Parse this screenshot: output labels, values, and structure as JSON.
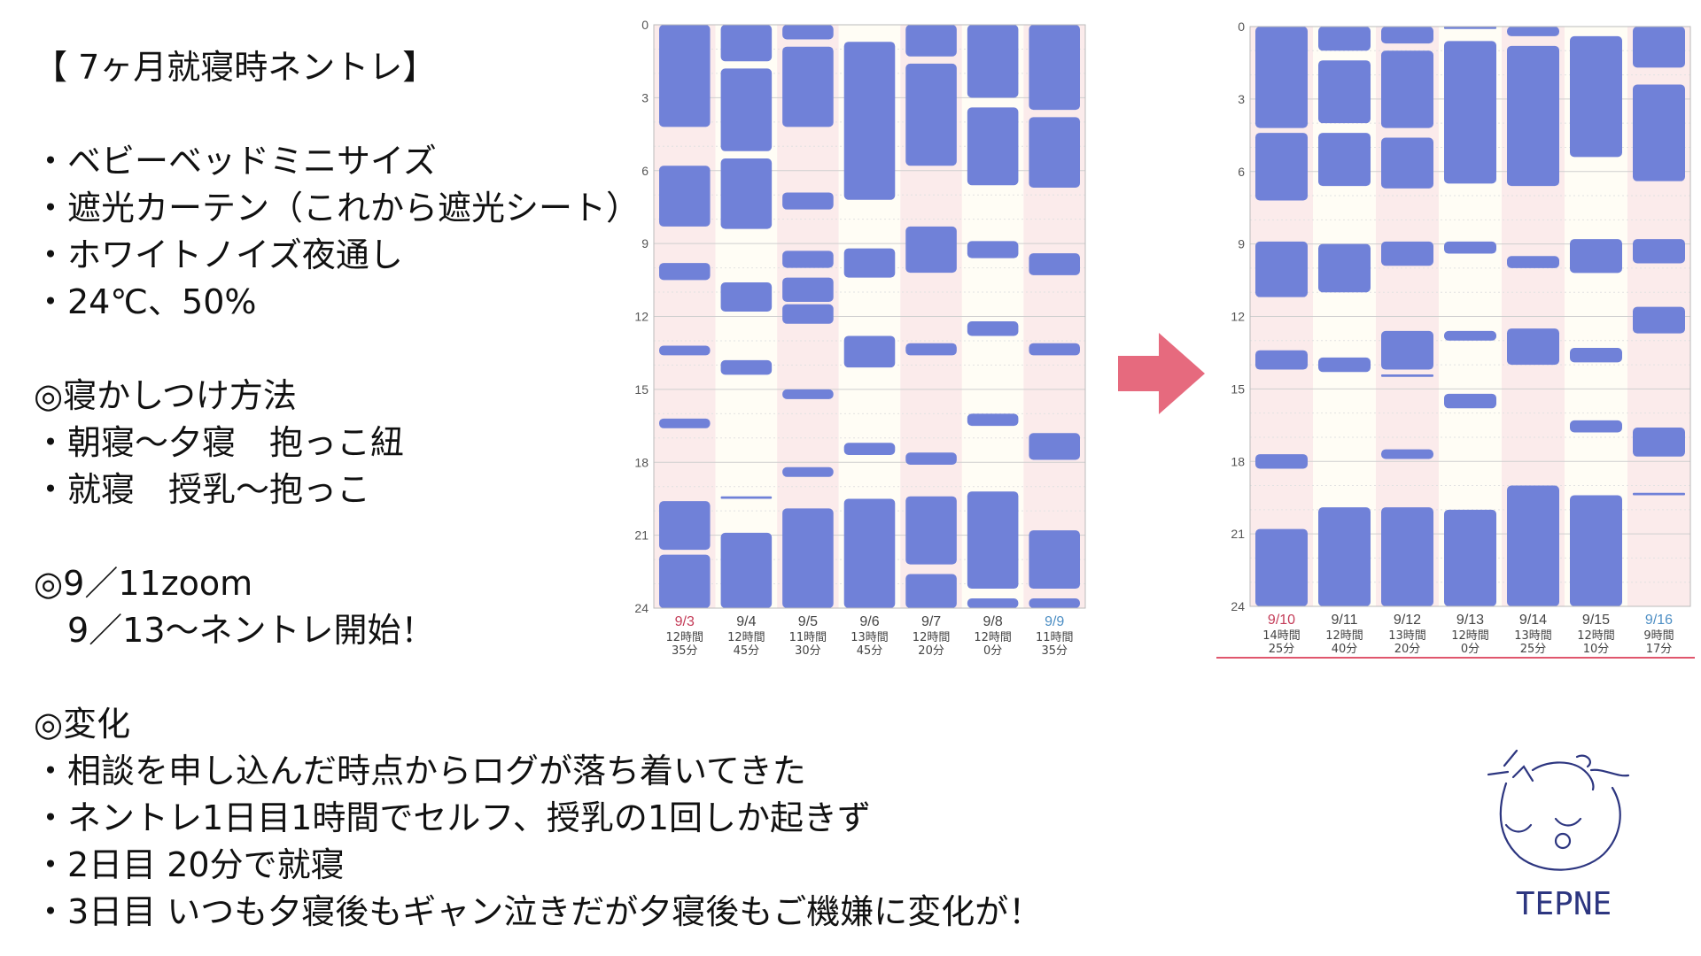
{
  "notes": [
    {
      "text": "【 7ヶ月就寝時ネントレ】"
    },
    {
      "text": ""
    },
    {
      "text": "・ベビーベッドミニサイズ"
    },
    {
      "text": "・遮光カーテン（これから遮光シート）"
    },
    {
      "text": "・ホワイトノイズ夜通し"
    },
    {
      "text": "・24℃、50%"
    },
    {
      "text": ""
    },
    {
      "text": "◎寝かしつけ方法"
    },
    {
      "text": "・朝寝～夕寝　抱っこ紐"
    },
    {
      "text": "・就寝　授乳～抱っこ"
    },
    {
      "text": ""
    },
    {
      "text": "◎9／11zoom"
    },
    {
      "text": "　9／13～ネントレ開始！"
    },
    {
      "text": ""
    },
    {
      "text": "◎変化"
    },
    {
      "text": "・相談を申し込んだ時点からログが落ち着いてきた"
    },
    {
      "text": "・ネントレ1日目1時間でセルフ、授乳の1回しか起きず"
    },
    {
      "text": "・2日目 20分で就寝"
    },
    {
      "text": "・3日目 いつも夕寝後もギャン泣きだが夕寝後もご機嫌に変化が！"
    }
  ],
  "logo": {
    "text": "TEPNE"
  },
  "colors": {
    "bar": "#7081d8",
    "weekend_bg": "#fbebeb",
    "weekday_bg": "#fffdf5",
    "sat_label": "#4e8fc4",
    "sun_label": "#c43c58",
    "arrow": "#e66a7e",
    "logo": "#2d3680"
  },
  "chart_data": [
    {
      "type": "timeline",
      "ylim": [
        0,
        24
      ],
      "yticks": [
        "0",
        "3",
        "6",
        "9",
        "12",
        "15",
        "18",
        "21",
        "24"
      ],
      "days": [
        {
          "date": "9/3",
          "total_h": "12時間",
          "total_m": "35分",
          "day_type": "sun",
          "sleeps": [
            [
              0,
              4.2
            ],
            [
              5.8,
              8.3
            ],
            [
              9.8,
              10.5
            ],
            [
              13.2,
              13.6
            ],
            [
              16.2,
              16.6
            ],
            [
              19.6,
              21.6
            ],
            [
              21.8,
              24
            ]
          ]
        },
        {
          "date": "9/4",
          "total_h": "12時間",
          "total_m": "45分",
          "day_type": "weekday",
          "sleeps": [
            [
              0,
              1.5
            ],
            [
              1.8,
              5.2
            ],
            [
              5.5,
              8.4
            ],
            [
              10.6,
              11.8
            ],
            [
              13.8,
              14.4
            ],
            [
              19.4,
              19.5
            ],
            [
              20.9,
              24
            ]
          ]
        },
        {
          "date": "9/5",
          "total_h": "11時間",
          "total_m": "30分",
          "day_type": "weekday",
          "sleeps": [
            [
              0,
              0.6
            ],
            [
              0.9,
              4.2
            ],
            [
              6.9,
              7.6
            ],
            [
              9.3,
              10
            ],
            [
              10.4,
              11.4
            ],
            [
              11.5,
              12.3
            ],
            [
              15,
              15.4
            ],
            [
              18.2,
              18.6
            ],
            [
              19.9,
              24
            ]
          ]
        },
        {
          "date": "9/6",
          "total_h": "13時間",
          "total_m": "45分",
          "day_type": "weekday",
          "sleeps": [
            [
              0.7,
              7.2
            ],
            [
              9.2,
              10.4
            ],
            [
              12.8,
              14.1
            ],
            [
              17.2,
              17.7
            ],
            [
              19.5,
              24
            ]
          ]
        },
        {
          "date": "9/7",
          "total_h": "12時間",
          "total_m": "20分",
          "day_type": "weekday",
          "sleeps": [
            [
              0,
              1.3
            ],
            [
              1.6,
              5.8
            ],
            [
              8.3,
              10.2
            ],
            [
              13.1,
              13.6
            ],
            [
              17.6,
              18.1
            ],
            [
              19.4,
              22.2
            ],
            [
              22.6,
              24
            ]
          ]
        },
        {
          "date": "9/8",
          "total_h": "12時間",
          "total_m": "0分",
          "day_type": "weekday",
          "sleeps": [
            [
              0,
              3
            ],
            [
              3.4,
              6.6
            ],
            [
              8.9,
              9.6
            ],
            [
              12.2,
              12.8
            ],
            [
              16,
              16.5
            ],
            [
              19.2,
              23.2
            ],
            [
              23.6,
              24
            ]
          ]
        },
        {
          "date": "9/9",
          "total_h": "11時間",
          "total_m": "35分",
          "day_type": "sat",
          "sleeps": [
            [
              0,
              3.5
            ],
            [
              3.8,
              6.7
            ],
            [
              9.4,
              10.3
            ],
            [
              13.1,
              13.6
            ],
            [
              16.8,
              17.9
            ],
            [
              20.8,
              23.2
            ],
            [
              23.6,
              24
            ]
          ]
        }
      ]
    },
    {
      "type": "timeline",
      "ylim": [
        0,
        24
      ],
      "yticks": [
        "0",
        "3",
        "6",
        "9",
        "12",
        "15",
        "18",
        "21",
        "24"
      ],
      "days": [
        {
          "date": "9/10",
          "total_h": "14時間",
          "total_m": "25分",
          "day_type": "sun",
          "sleeps": [
            [
              0,
              4.2
            ],
            [
              4.4,
              7.2
            ],
            [
              8.9,
              11.2
            ],
            [
              13.4,
              14.2
            ],
            [
              17.7,
              18.3
            ],
            [
              20.8,
              24
            ]
          ]
        },
        {
          "date": "9/11",
          "total_h": "12時間",
          "total_m": "40分",
          "day_type": "weekday",
          "sleeps": [
            [
              0,
              1
            ],
            [
              1.4,
              4
            ],
            [
              4.4,
              6.6
            ],
            [
              9,
              11
            ],
            [
              13.7,
              14.3
            ],
            [
              19.9,
              24
            ]
          ]
        },
        {
          "date": "9/12",
          "total_h": "13時間",
          "total_m": "20分",
          "day_type": "weekday",
          "sleeps": [
            [
              0,
              0.7
            ],
            [
              1,
              4.2
            ],
            [
              4.6,
              6.7
            ],
            [
              8.9,
              9.9
            ],
            [
              12.6,
              14.2
            ],
            [
              14.4,
              14.5
            ],
            [
              17.5,
              17.9
            ],
            [
              19.9,
              24
            ]
          ]
        },
        {
          "date": "9/13",
          "total_h": "12時間",
          "total_m": "0分",
          "day_type": "weekday",
          "sleeps": [
            [
              0,
              0.1
            ],
            [
              0.6,
              6.5
            ],
            [
              8.9,
              9.4
            ],
            [
              12.6,
              13
            ],
            [
              15.2,
              15.8
            ],
            [
              20,
              24
            ]
          ]
        },
        {
          "date": "9/14",
          "total_h": "13時間",
          "total_m": "25分",
          "day_type": "weekday",
          "sleeps": [
            [
              0,
              0.4
            ],
            [
              0.8,
              6.6
            ],
            [
              9.5,
              10
            ],
            [
              12.5,
              14
            ],
            [
              19,
              24
            ]
          ]
        },
        {
          "date": "9/15",
          "total_h": "12時間",
          "total_m": "10分",
          "day_type": "weekday",
          "sleeps": [
            [
              0.4,
              5.4
            ],
            [
              8.8,
              10.2
            ],
            [
              13.3,
              13.9
            ],
            [
              16.3,
              16.8
            ],
            [
              19.4,
              24
            ]
          ]
        },
        {
          "date": "9/16",
          "total_h": "9時間",
          "total_m": "17分",
          "day_type": "sat",
          "sleeps": [
            [
              0,
              1.7
            ],
            [
              2.4,
              6.4
            ],
            [
              8.8,
              9.8
            ],
            [
              11.6,
              12.7
            ],
            [
              16.6,
              17.8
            ],
            [
              19.3,
              19.4
            ]
          ]
        }
      ]
    }
  ]
}
